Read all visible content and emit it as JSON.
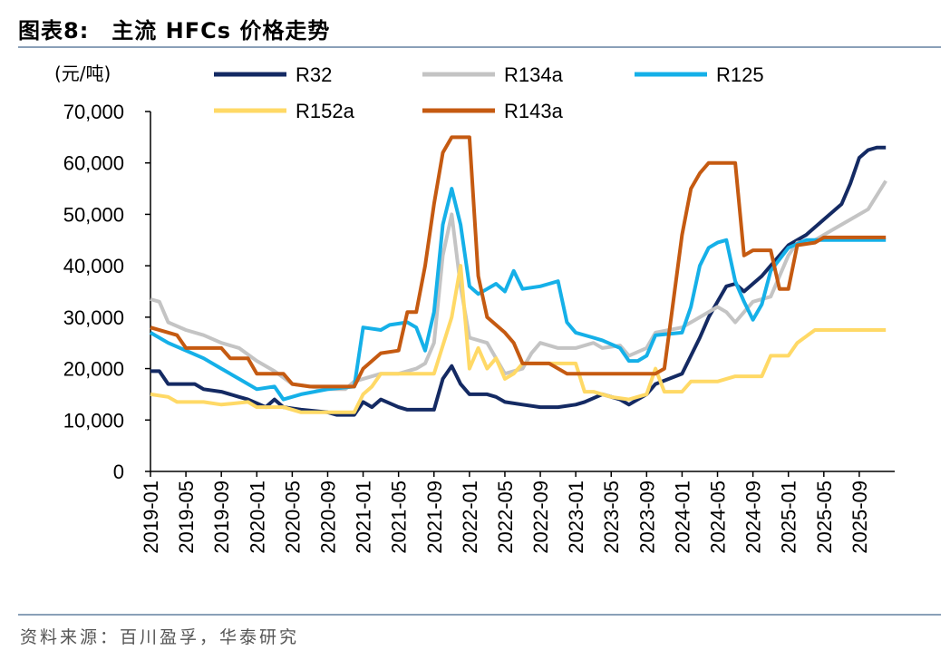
{
  "figure": {
    "title": "图表8:　主流 HFCs 价格走势",
    "source": "资料来源：百川盈孚，华泰研究"
  },
  "chart_data": {
    "type": "line",
    "ylabel": "(元/吨)",
    "ylim": [
      0,
      70000
    ],
    "yticks": [
      0,
      10000,
      20000,
      30000,
      40000,
      50000,
      60000,
      70000
    ],
    "ytick_labels": [
      "0",
      "10,000",
      "20,000",
      "30,000",
      "40,000",
      "50,000",
      "60,000",
      "70,000"
    ],
    "xlim": [
      "2019-01",
      "2025-12"
    ],
    "xtick_labels": [
      "2019-01",
      "2019-05",
      "2019-09",
      "2020-01",
      "2020-05",
      "2020-09",
      "2021-01",
      "2021-05",
      "2021-09",
      "2022-01",
      "2022-05",
      "2022-09",
      "2023-01",
      "2023-05",
      "2023-09",
      "2024-01",
      "2024-05",
      "2024-09",
      "2025-01",
      "2025-05",
      "2025-09"
    ],
    "legend_position": "top",
    "grid": false,
    "series": [
      {
        "name": "R32",
        "color": "#142a63",
        "points": [
          [
            "2019-01",
            19500
          ],
          [
            "2019-02",
            19500
          ],
          [
            "2019-03",
            17000
          ],
          [
            "2019-06",
            17000
          ],
          [
            "2019-07",
            16000
          ],
          [
            "2019-09",
            15500
          ],
          [
            "2019-11",
            14500
          ],
          [
            "2019-12",
            14000
          ],
          [
            "2020-02",
            12500
          ],
          [
            "2020-03",
            14000
          ],
          [
            "2020-04",
            12500
          ],
          [
            "2020-06",
            12000
          ],
          [
            "2020-09",
            11500
          ],
          [
            "2020-10",
            11000
          ],
          [
            "2020-12",
            11000
          ],
          [
            "2021-01",
            13500
          ],
          [
            "2021-02",
            12500
          ],
          [
            "2021-03",
            14000
          ],
          [
            "2021-05",
            12500
          ],
          [
            "2021-06",
            12000
          ],
          [
            "2021-09",
            12000
          ],
          [
            "2021-10",
            18000
          ],
          [
            "2021-11",
            20500
          ],
          [
            "2021-12",
            17000
          ],
          [
            "2022-01",
            15000
          ],
          [
            "2022-03",
            15000
          ],
          [
            "2022-04",
            14500
          ],
          [
            "2022-05",
            13500
          ],
          [
            "2022-07",
            13000
          ],
          [
            "2022-09",
            12500
          ],
          [
            "2022-11",
            12500
          ],
          [
            "2023-01",
            13000
          ],
          [
            "2023-02",
            13500
          ],
          [
            "2023-04",
            15000
          ],
          [
            "2023-06",
            14000
          ],
          [
            "2023-07",
            13000
          ],
          [
            "2023-09",
            15000
          ],
          [
            "2023-10",
            17000
          ],
          [
            "2024-01",
            19000
          ],
          [
            "2024-03",
            26000
          ],
          [
            "2024-04",
            30000
          ],
          [
            "2024-05",
            33000
          ],
          [
            "2024-06",
            36000
          ],
          [
            "2024-07",
            36500
          ],
          [
            "2024-08",
            35000
          ],
          [
            "2024-10",
            38000
          ],
          [
            "2024-11",
            40000
          ],
          [
            "2025-01",
            44000
          ],
          [
            "2025-03",
            46000
          ],
          [
            "2025-05",
            49000
          ],
          [
            "2025-07",
            52000
          ],
          [
            "2025-08",
            56000
          ],
          [
            "2025-09",
            61000
          ],
          [
            "2025-10",
            62500
          ],
          [
            "2025-11",
            63000
          ],
          [
            "2025-12",
            63000
          ]
        ]
      },
      {
        "name": "R134a",
        "color": "#c4c4c4",
        "points": [
          [
            "2019-01",
            33500
          ],
          [
            "2019-02",
            33000
          ],
          [
            "2019-03",
            29000
          ],
          [
            "2019-05",
            27500
          ],
          [
            "2019-07",
            26500
          ],
          [
            "2019-09",
            25000
          ],
          [
            "2019-11",
            24000
          ],
          [
            "2020-01",
            21500
          ],
          [
            "2020-03",
            19500
          ],
          [
            "2020-05",
            17000
          ],
          [
            "2020-07",
            16500
          ],
          [
            "2020-09",
            16000
          ],
          [
            "2020-11",
            16000
          ],
          [
            "2020-12",
            17500
          ],
          [
            "2021-01",
            18000
          ],
          [
            "2021-03",
            19000
          ],
          [
            "2021-05",
            19000
          ],
          [
            "2021-07",
            20000
          ],
          [
            "2021-08",
            21000
          ],
          [
            "2021-09",
            25000
          ],
          [
            "2021-10",
            42000
          ],
          [
            "2021-11",
            50000
          ],
          [
            "2021-12",
            36000
          ],
          [
            "2022-01",
            26000
          ],
          [
            "2022-03",
            25000
          ],
          [
            "2022-05",
            19000
          ],
          [
            "2022-07",
            20000
          ],
          [
            "2022-08",
            23000
          ],
          [
            "2022-09",
            25000
          ],
          [
            "2022-11",
            24000
          ],
          [
            "2023-01",
            24000
          ],
          [
            "2023-03",
            25000
          ],
          [
            "2023-04",
            24000
          ],
          [
            "2023-06",
            24500
          ],
          [
            "2023-07",
            22500
          ],
          [
            "2023-09",
            24000
          ],
          [
            "2023-10",
            27000
          ],
          [
            "2024-01",
            28000
          ],
          [
            "2024-03",
            30000
          ],
          [
            "2024-05",
            32000
          ],
          [
            "2024-06",
            31000
          ],
          [
            "2024-07",
            29000
          ],
          [
            "2024-09",
            33000
          ],
          [
            "2024-11",
            34000
          ],
          [
            "2025-01",
            42000
          ],
          [
            "2025-02",
            44500
          ],
          [
            "2025-04",
            45000
          ],
          [
            "2025-06",
            47000
          ],
          [
            "2025-08",
            49000
          ],
          [
            "2025-10",
            51000
          ],
          [
            "2025-12",
            56500
          ]
        ]
      },
      {
        "name": "R125",
        "color": "#15b0e8",
        "points": [
          [
            "2019-01",
            27000
          ],
          [
            "2019-03",
            25000
          ],
          [
            "2019-05",
            23500
          ],
          [
            "2019-07",
            22000
          ],
          [
            "2019-09",
            20000
          ],
          [
            "2019-11",
            18000
          ],
          [
            "2020-01",
            16000
          ],
          [
            "2020-03",
            16500
          ],
          [
            "2020-04",
            14000
          ],
          [
            "2020-06",
            15000
          ],
          [
            "2020-09",
            16000
          ],
          [
            "2020-12",
            16500
          ],
          [
            "2021-01",
            28000
          ],
          [
            "2021-03",
            27500
          ],
          [
            "2021-04",
            28500
          ],
          [
            "2021-06",
            29000
          ],
          [
            "2021-07",
            28000
          ],
          [
            "2021-08",
            23500
          ],
          [
            "2021-09",
            31000
          ],
          [
            "2021-10",
            48000
          ],
          [
            "2021-11",
            55000
          ],
          [
            "2021-12",
            48000
          ],
          [
            "2022-01",
            36000
          ],
          [
            "2022-02",
            34500
          ],
          [
            "2022-03",
            35500
          ],
          [
            "2022-04",
            36500
          ],
          [
            "2022-05",
            35000
          ],
          [
            "2022-06",
            39000
          ],
          [
            "2022-07",
            35500
          ],
          [
            "2022-09",
            36000
          ],
          [
            "2022-10",
            36500
          ],
          [
            "2022-11",
            37000
          ],
          [
            "2022-12",
            29000
          ],
          [
            "2023-01",
            27000
          ],
          [
            "2023-03",
            26000
          ],
          [
            "2023-04",
            25500
          ],
          [
            "2023-06",
            24000
          ],
          [
            "2023-07",
            21500
          ],
          [
            "2023-08",
            21500
          ],
          [
            "2023-09",
            22500
          ],
          [
            "2023-10",
            26500
          ],
          [
            "2024-01",
            27000
          ],
          [
            "2024-02",
            32000
          ],
          [
            "2024-03",
            40000
          ],
          [
            "2024-04",
            43500
          ],
          [
            "2024-05",
            44500
          ],
          [
            "2024-06",
            45000
          ],
          [
            "2024-07",
            37000
          ],
          [
            "2024-08",
            33000
          ],
          [
            "2024-09",
            29500
          ],
          [
            "2024-10",
            32500
          ],
          [
            "2024-11",
            39000
          ],
          [
            "2025-01",
            43500
          ],
          [
            "2025-03",
            45000
          ],
          [
            "2025-06",
            45000
          ],
          [
            "2025-12",
            45000
          ]
        ]
      },
      {
        "name": "R152a",
        "color": "#ffd966",
        "points": [
          [
            "2019-01",
            15000
          ],
          [
            "2019-03",
            14500
          ],
          [
            "2019-04",
            13500
          ],
          [
            "2019-07",
            13500
          ],
          [
            "2019-09",
            13000
          ],
          [
            "2019-12",
            13500
          ],
          [
            "2020-01",
            12500
          ],
          [
            "2020-04",
            12500
          ],
          [
            "2020-06",
            11500
          ],
          [
            "2020-12",
            11500
          ],
          [
            "2021-01",
            15000
          ],
          [
            "2021-02",
            16500
          ],
          [
            "2021-03",
            19000
          ],
          [
            "2021-06",
            19000
          ],
          [
            "2021-09",
            19000
          ],
          [
            "2021-11",
            30000
          ],
          [
            "2021-12",
            40000
          ],
          [
            "2022-01",
            20000
          ],
          [
            "2022-02",
            24000
          ],
          [
            "2022-03",
            20000
          ],
          [
            "2022-04",
            22000
          ],
          [
            "2022-05",
            18000
          ],
          [
            "2022-06",
            19000
          ],
          [
            "2022-07",
            21000
          ],
          [
            "2022-10",
            21000
          ],
          [
            "2022-12",
            21000
          ],
          [
            "2023-01",
            21000
          ],
          [
            "2023-02",
            15500
          ],
          [
            "2023-03",
            15500
          ],
          [
            "2023-05",
            14500
          ],
          [
            "2023-07",
            14000
          ],
          [
            "2023-09",
            15000
          ],
          [
            "2023-10",
            20000
          ],
          [
            "2023-11",
            15500
          ],
          [
            "2024-01",
            15500
          ],
          [
            "2024-02",
            17500
          ],
          [
            "2024-05",
            17500
          ],
          [
            "2024-07",
            18500
          ],
          [
            "2024-10",
            18500
          ],
          [
            "2024-11",
            22500
          ],
          [
            "2025-01",
            22500
          ],
          [
            "2025-02",
            25000
          ],
          [
            "2025-04",
            27500
          ],
          [
            "2025-12",
            27500
          ]
        ]
      },
      {
        "name": "R143a",
        "color": "#c55a11",
        "points": [
          [
            "2019-01",
            28000
          ],
          [
            "2019-04",
            26500
          ],
          [
            "2019-05",
            24000
          ],
          [
            "2019-09",
            24000
          ],
          [
            "2019-10",
            22000
          ],
          [
            "2019-12",
            22000
          ],
          [
            "2020-01",
            19000
          ],
          [
            "2020-04",
            19000
          ],
          [
            "2020-05",
            17000
          ],
          [
            "2020-07",
            16500
          ],
          [
            "2020-12",
            16500
          ],
          [
            "2021-01",
            20000
          ],
          [
            "2021-03",
            23000
          ],
          [
            "2021-05",
            23500
          ],
          [
            "2021-06",
            31000
          ],
          [
            "2021-07",
            31000
          ],
          [
            "2021-08",
            40000
          ],
          [
            "2021-09",
            52000
          ],
          [
            "2021-10",
            62000
          ],
          [
            "2021-11",
            65000
          ],
          [
            "2022-01",
            65000
          ],
          [
            "2022-02",
            38000
          ],
          [
            "2022-03",
            30000
          ],
          [
            "2022-05",
            27000
          ],
          [
            "2022-06",
            25000
          ],
          [
            "2022-07",
            21000
          ],
          [
            "2022-10",
            21000
          ],
          [
            "2022-12",
            19000
          ],
          [
            "2023-05",
            19000
          ],
          [
            "2023-10",
            19000
          ],
          [
            "2023-11",
            20000
          ],
          [
            "2023-12",
            33000
          ],
          [
            "2024-01",
            46000
          ],
          [
            "2024-02",
            55000
          ],
          [
            "2024-03",
            58000
          ],
          [
            "2024-04",
            60000
          ],
          [
            "2024-07",
            60000
          ],
          [
            "2024-08",
            42000
          ],
          [
            "2024-09",
            43000
          ],
          [
            "2024-11",
            43000
          ],
          [
            "2024-12",
            35500
          ],
          [
            "2025-01",
            35500
          ],
          [
            "2025-02",
            44000
          ],
          [
            "2025-04",
            44500
          ],
          [
            "2025-05",
            45500
          ],
          [
            "2025-12",
            45500
          ]
        ]
      }
    ]
  }
}
